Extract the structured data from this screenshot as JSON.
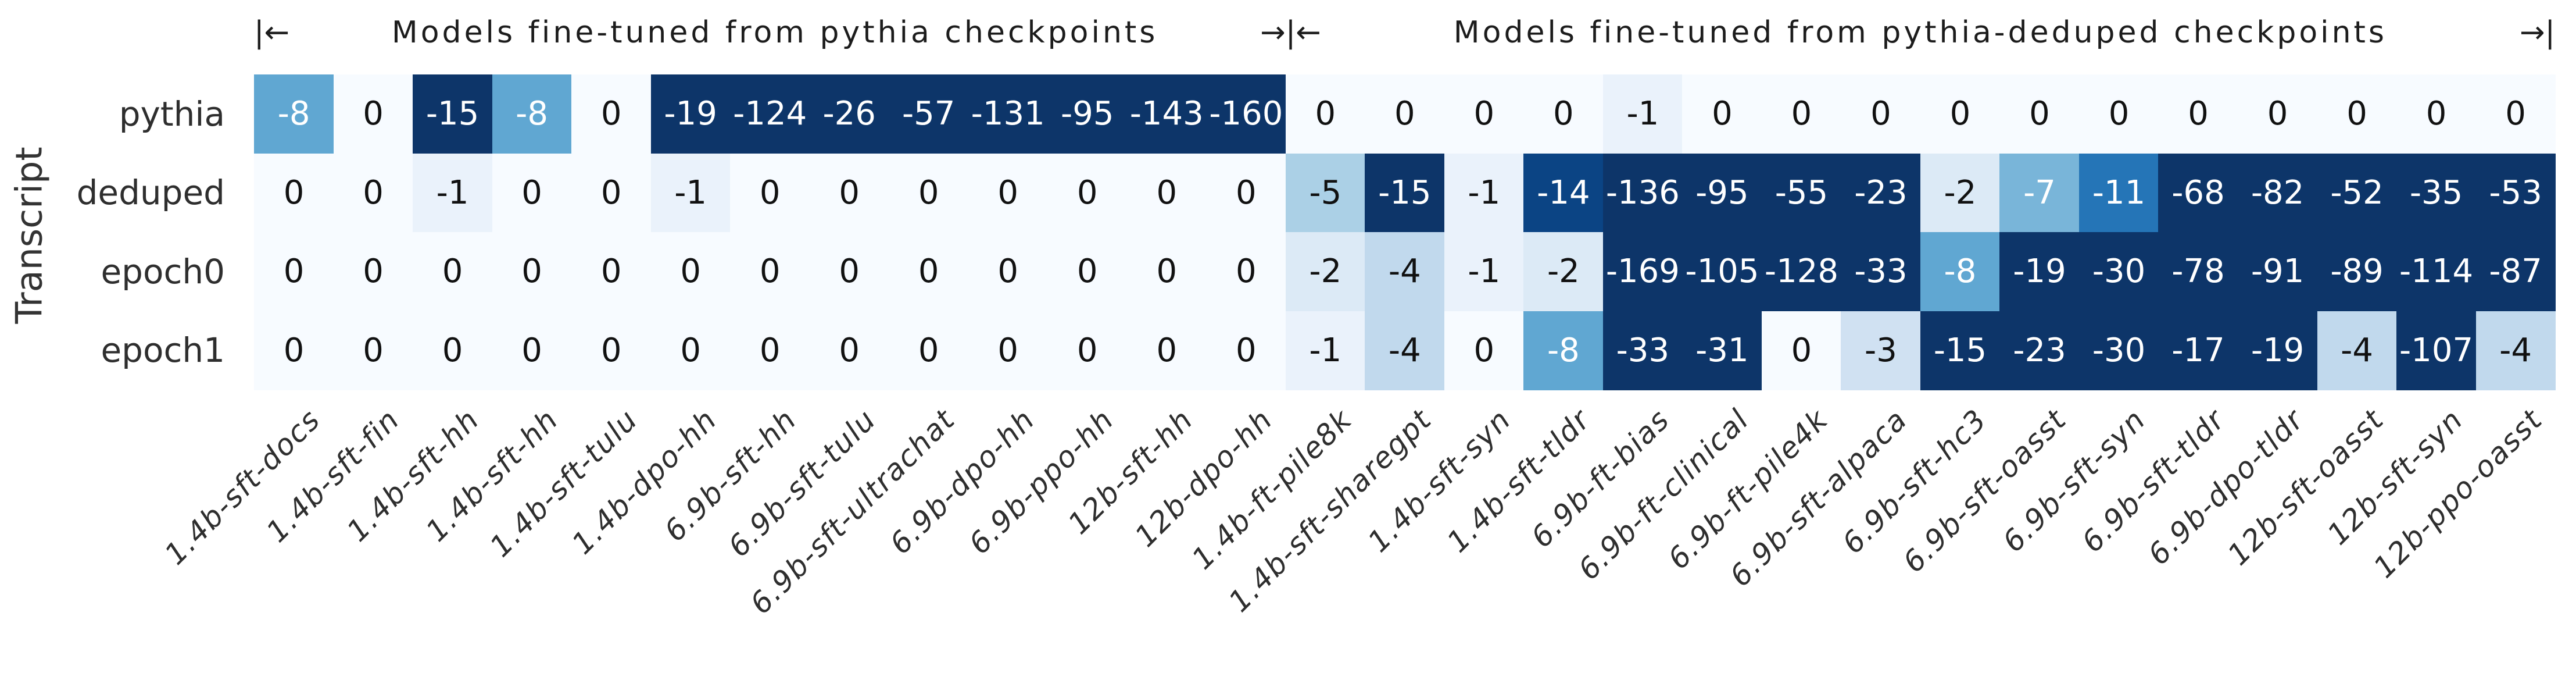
{
  "chart_data": {
    "type": "heatmap",
    "ylabel": "Transcript",
    "header": {
      "groups": [
        {
          "left_marker": "|←",
          "label": "Models fine-tuned from pythia checkpoints",
          "right_marker": "→",
          "col_span": [
            0,
            12
          ]
        },
        {
          "left_marker": "|←",
          "label": "Models fine-tuned from pythia-deduped checkpoints",
          "right_marker": "→|",
          "col_span": [
            13,
            28
          ]
        }
      ]
    },
    "rows": [
      "pythia",
      "deduped",
      "epoch0",
      "epoch1"
    ],
    "columns": [
      "1.4b-sft-docs",
      "1.4b-sft-fin",
      "1.4b-sft-hh",
      "1.4b-sft-hh",
      "1.4b-sft-tulu",
      "1.4b-dpo-hh",
      "6.9b-sft-hh",
      "6.9b-sft-tulu",
      "6.9b-sft-ultrachat",
      "6.9b-dpo-hh",
      "6.9b-ppo-hh",
      "12b-sft-hh",
      "12b-dpo-hh",
      "1.4b-ft-pile8k",
      "1.4b-sft-sharegpt",
      "1.4b-sft-syn",
      "1.4b-sft-tldr",
      "6.9b-ft-bias",
      "6.9b-ft-clinical",
      "6.9b-ft-pile4k",
      "6.9b-sft-alpaca",
      "6.9b-sft-hc3",
      "6.9b-sft-oasst",
      "6.9b-sft-syn",
      "6.9b-sft-tldr",
      "6.9b-dpo-tldr",
      "12b-sft-oasst",
      "12b-sft-syn",
      "12b-ppo-oasst"
    ],
    "values": [
      [
        -8,
        0,
        -15,
        -8,
        0,
        -19,
        -124,
        -26,
        -57,
        -131,
        -95,
        -143,
        -160,
        0,
        0,
        0,
        0,
        -1,
        0,
        0,
        0,
        0,
        0,
        0,
        0,
        0,
        0,
        0,
        0
      ],
      [
        0,
        0,
        -1,
        0,
        0,
        -1,
        0,
        0,
        0,
        0,
        0,
        0,
        0,
        -5,
        -15,
        -1,
        -14,
        -136,
        -95,
        -55,
        -23,
        -2,
        -7,
        -11,
        -68,
        -82,
        -52,
        -35,
        -53
      ],
      [
        0,
        0,
        0,
        0,
        0,
        0,
        0,
        0,
        0,
        0,
        0,
        0,
        0,
        -2,
        -4,
        -1,
        -2,
        -169,
        -105,
        -128,
        -33,
        -8,
        -19,
        -30,
        -78,
        -91,
        -89,
        -114,
        -87
      ],
      [
        0,
        0,
        0,
        0,
        0,
        0,
        0,
        0,
        0,
        0,
        0,
        0,
        0,
        -1,
        -4,
        0,
        -8,
        -33,
        -31,
        0,
        -3,
        -15,
        -23,
        -30,
        -17,
        -19,
        -4,
        -107,
        -4
      ]
    ],
    "colormap": {
      "name": "Blues (magnitude of negative values)",
      "saturate_at_abs": 15,
      "anchors": [
        [
          0.0,
          "#f7fbff"
        ],
        [
          0.125,
          "#deebf7"
        ],
        [
          0.25,
          "#c6dbef"
        ],
        [
          0.375,
          "#9ecae1"
        ],
        [
          0.5,
          "#6baed6"
        ],
        [
          0.625,
          "#4292c6"
        ],
        [
          0.75,
          "#2171b5"
        ],
        [
          0.875,
          "#09519c"
        ],
        [
          1.0,
          "#0d3569"
        ]
      ]
    },
    "annotation_text_colors": {
      "on_light": "#111111",
      "on_dark": "#ffffff",
      "white_text_when_abs_value_at_least": 7
    },
    "legend": "none",
    "grid": "off"
  }
}
